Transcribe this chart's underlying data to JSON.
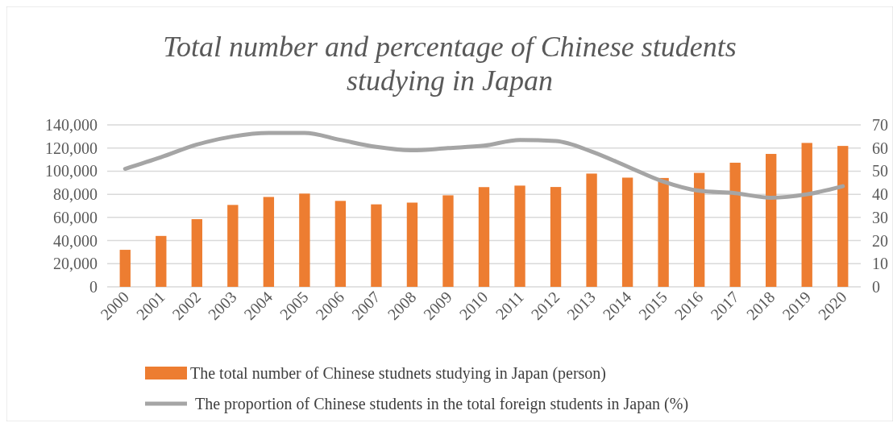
{
  "chart_data": {
    "type": "bar",
    "title": "Total number and percentage of Chinese students studying in Japan",
    "categories": [
      "2000",
      "2001",
      "2002",
      "2003",
      "2004",
      "2005",
      "2006",
      "2007",
      "2008",
      "2009",
      "2010",
      "2011",
      "2012",
      "2013",
      "2014",
      "2015",
      "2016",
      "2017",
      "2018",
      "2019",
      "2020"
    ],
    "series": [
      {
        "name": "The total number of Chinese studnets studying in Japan (person)",
        "color": "#ed7d31",
        "values": [
          32000,
          44000,
          58500,
          70800,
          77700,
          80600,
          74300,
          71300,
          72800,
          79100,
          86200,
          87500,
          86300,
          97900,
          94400,
          94100,
          98500,
          107300,
          114900,
          124400,
          121800
        ]
      },
      {
        "name": "The proportion of Chinese students in the total foreign students in Japan (%)",
        "type": "line",
        "axis": "y2",
        "color": "#a5a5a5",
        "values": [
          51,
          56,
          61.5,
          65,
          66.5,
          66.5,
          63.5,
          60.5,
          59,
          60,
          61,
          63.5,
          63,
          58.5,
          52,
          45.5,
          41.5,
          40.5,
          38.5,
          40,
          43.5
        ]
      }
    ],
    "ylim": [
      0,
      140000
    ],
    "yticks": [
      {
        "value": 0,
        "label": "0"
      },
      {
        "value": 20000,
        "label": "20,000"
      },
      {
        "value": 40000,
        "label": "40,000"
      },
      {
        "value": 60000,
        "label": "60,000"
      },
      {
        "value": 80000,
        "label": "80,000"
      },
      {
        "value": 100000,
        "label": "100,000"
      },
      {
        "value": 120000,
        "label": "120,000"
      },
      {
        "value": 140000,
        "label": "140,000"
      }
    ],
    "y2lim": [
      0,
      70
    ],
    "y2ticks": [
      0,
      10,
      20,
      30,
      40,
      50,
      60,
      70
    ],
    "grid": "y",
    "legend": "bottom"
  }
}
